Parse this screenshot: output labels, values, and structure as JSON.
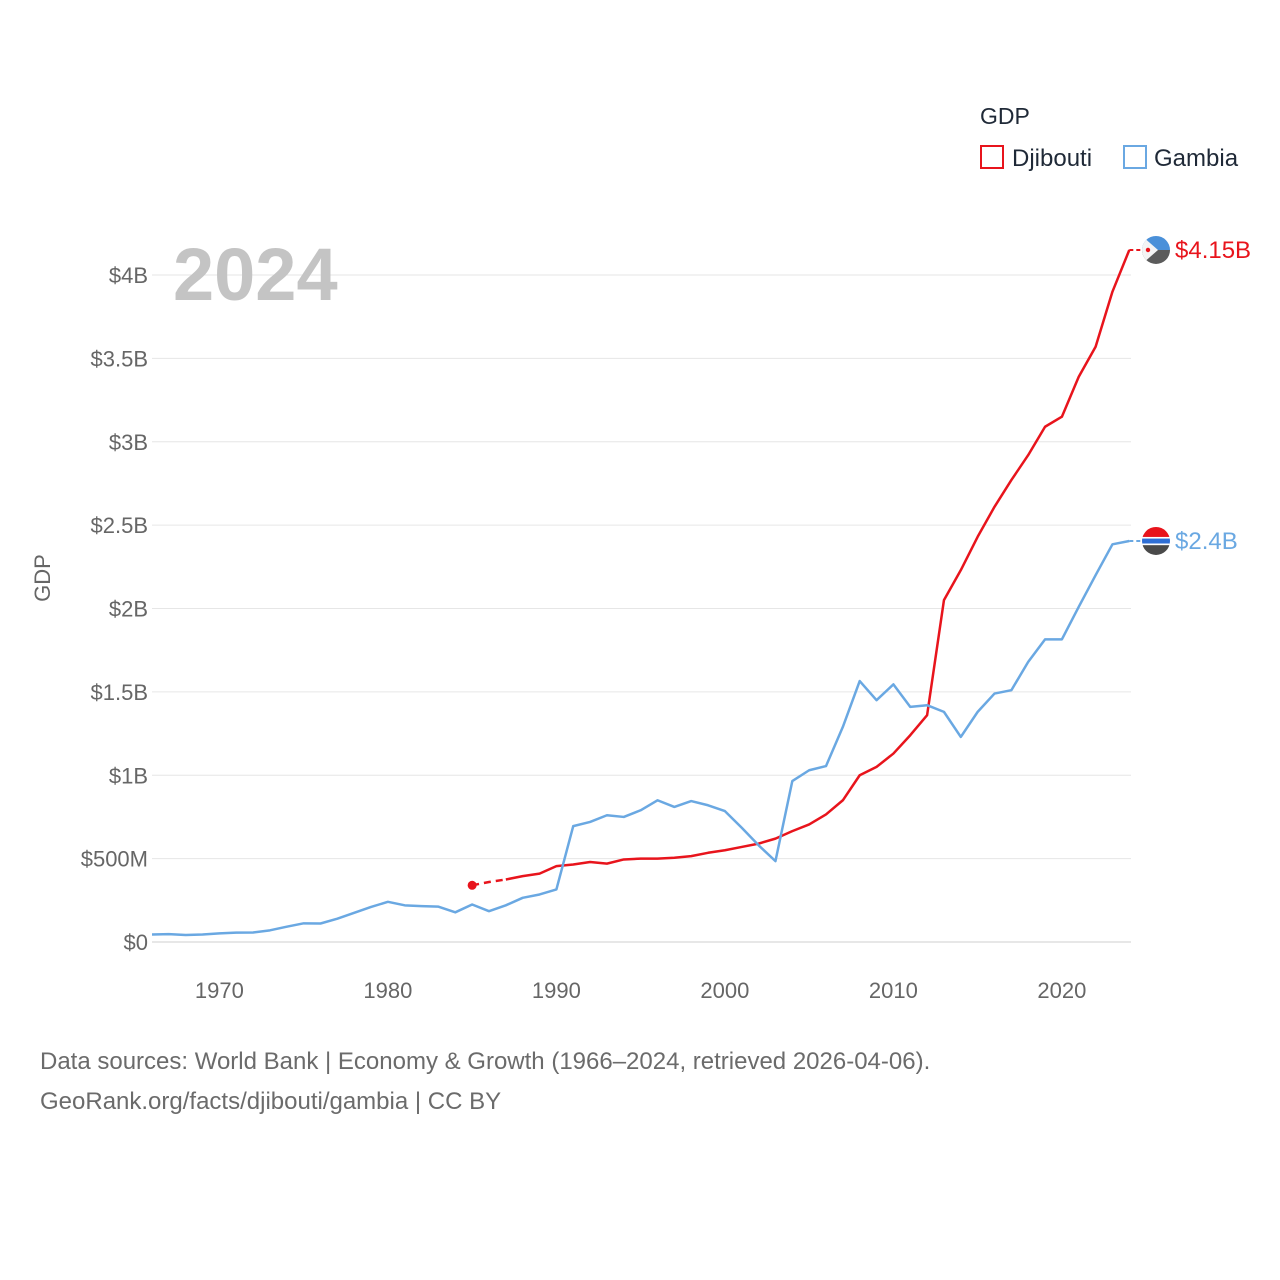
{
  "chart_data": {
    "type": "line",
    "title": "GDP",
    "ylabel": "GDP",
    "xlabel": "",
    "current_year": "2024",
    "xlim": [
      1966,
      2024
    ],
    "ylim": [
      0,
      4400000000
    ],
    "x_ticks": [
      1970,
      1980,
      1990,
      2000,
      2010,
      2020
    ],
    "y_ticks": [
      {
        "value": 0,
        "label": "$0"
      },
      {
        "value": 500000000,
        "label": "$500M"
      },
      {
        "value": 1000000000,
        "label": "$1B"
      },
      {
        "value": 1500000000,
        "label": "$1.5B"
      },
      {
        "value": 2000000000,
        "label": "$2B"
      },
      {
        "value": 2500000000,
        "label": "$2.5B"
      },
      {
        "value": 3000000000,
        "label": "$3B"
      },
      {
        "value": 3500000000,
        "label": "$3.5B"
      },
      {
        "value": 4000000000,
        "label": "$4B"
      }
    ],
    "legend_title": "GDP",
    "legend_position": "top-right",
    "series": [
      {
        "name": "Djibouti",
        "color": "#e8141c",
        "end_label": "$4.15B",
        "dashed_until": 1987,
        "x": [
          1985,
          1986,
          1987,
          1988,
          1989,
          1990,
          1991,
          1992,
          1993,
          1994,
          1995,
          1996,
          1997,
          1998,
          1999,
          2000,
          2001,
          2002,
          2003,
          2004,
          2005,
          2006,
          2007,
          2008,
          2009,
          2010,
          2011,
          2012,
          2013,
          2014,
          2015,
          2016,
          2017,
          2018,
          2019,
          2020,
          2021,
          2022,
          2023,
          2024
        ],
        "values": [
          340000000,
          360000000,
          375000000,
          395000000,
          410000000,
          455000000,
          465000000,
          480000000,
          470000000,
          495000000,
          500000000,
          500000000,
          505000000,
          515000000,
          535000000,
          550000000,
          570000000,
          590000000,
          620000000,
          665000000,
          705000000,
          765000000,
          850000000,
          1000000000,
          1050000000,
          1130000000,
          1240000000,
          1360000000,
          2050000000,
          2230000000,
          2430000000,
          2610000000,
          2770000000,
          2920000000,
          3090000000,
          3150000000,
          3390000000,
          3570000000,
          3900000000,
          4150000000
        ]
      },
      {
        "name": "Gambia",
        "color": "#6aa8e2",
        "end_label": "$2.4B",
        "x": [
          1966,
          1967,
          1968,
          1969,
          1970,
          1971,
          1972,
          1973,
          1974,
          1975,
          1976,
          1977,
          1978,
          1979,
          1980,
          1981,
          1982,
          1983,
          1984,
          1985,
          1986,
          1987,
          1988,
          1989,
          1990,
          1991,
          1992,
          1993,
          1994,
          1995,
          1996,
          1997,
          1998,
          1999,
          2000,
          2001,
          2002,
          2003,
          2004,
          2005,
          2006,
          2007,
          2008,
          2009,
          2010,
          2011,
          2012,
          2013,
          2014,
          2015,
          2016,
          2017,
          2018,
          2019,
          2020,
          2021,
          2022,
          2023,
          2024
        ],
        "values": [
          45000000,
          47000000,
          42000000,
          45000000,
          52000000,
          56000000,
          57000000,
          70000000,
          92000000,
          112000000,
          111000000,
          140000000,
          175000000,
          210000000,
          241000000,
          220000000,
          215000000,
          212000000,
          178000000,
          225000000,
          185000000,
          220000000,
          265000000,
          285000000,
          315000000,
          695000000,
          720000000,
          760000000,
          750000000,
          790000000,
          850000000,
          810000000,
          845000000,
          820000000,
          785000000,
          685000000,
          580000000,
          485000000,
          965000000,
          1030000000,
          1055000000,
          1290000000,
          1565000000,
          1450000000,
          1545000000,
          1410000000,
          1420000000,
          1380000000,
          1230000000,
          1380000000,
          1490000000,
          1510000000,
          1680000000,
          1815000000,
          1815000000,
          2010000000,
          2200000000,
          2385000000,
          2405000000
        ]
      }
    ]
  },
  "footer": {
    "line1": "Data sources: World Bank | Economy & Growth (1966–2024, retrieved 2026-04-06).",
    "line2": "GeoRank.org/facts/djibouti/gambia | CC BY"
  }
}
